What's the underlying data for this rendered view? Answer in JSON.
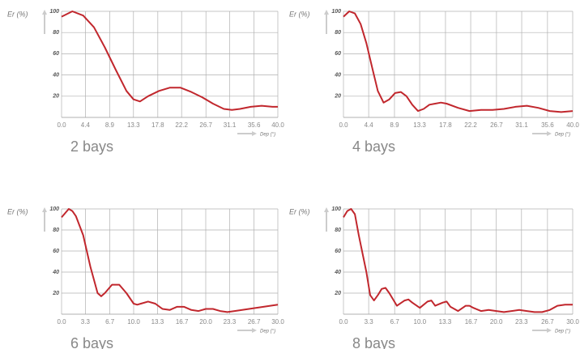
{
  "chart_data": [
    {
      "type": "line",
      "title": "2 bays",
      "y_label": "Er (%)",
      "x_label": "Dep (°)",
      "x": [
        0,
        2,
        4,
        6,
        8,
        10,
        12,
        13.3,
        14.5,
        16,
        18,
        20,
        22,
        24,
        26,
        28,
        30,
        31.5,
        33,
        35,
        37,
        39,
        40
      ],
      "series": [
        {
          "color": "#c1272d",
          "values": [
            95,
            100,
            96,
            85,
            66,
            45,
            25,
            17,
            15,
            20,
            25,
            28,
            28,
            24,
            19,
            13,
            8,
            7,
            8,
            10,
            11,
            10,
            10
          ]
        }
      ],
      "xlim": [
        0,
        40
      ],
      "xticks": [
        {
          "value": 0,
          "label": "0.0"
        },
        4.4,
        8.9,
        13.3,
        17.8,
        22.2,
        26.7,
        31.1,
        35.6,
        {
          "value": 40,
          "label": "40.0"
        }
      ],
      "ylim": [
        0,
        100
      ],
      "yticks": [
        20,
        40,
        60,
        80,
        100
      ],
      "grid": true
    },
    {
      "type": "line",
      "title": "4 bays",
      "y_label": "Er (%)",
      "x_label": "Dep (°)",
      "x": [
        0,
        1,
        2,
        3,
        4,
        5,
        6,
        7,
        8,
        9,
        10,
        11,
        12,
        13,
        14,
        15,
        16,
        17,
        18,
        20,
        22,
        24,
        26,
        28,
        30,
        32,
        34,
        36,
        38,
        40
      ],
      "series": [
        {
          "color": "#c1272d",
          "values": [
            95,
            100,
            98,
            88,
            70,
            47,
            25,
            14,
            17,
            23,
            24,
            20,
            12,
            6,
            8,
            12,
            13,
            14,
            13,
            9,
            6,
            7,
            7,
            8,
            10,
            11,
            9,
            6,
            5,
            6
          ]
        }
      ],
      "xlim": [
        0,
        40
      ],
      "xticks": [
        {
          "value": 0,
          "label": "0.0"
        },
        4.4,
        8.9,
        13.3,
        17.8,
        22.2,
        26.7,
        31.1,
        35.6,
        {
          "value": 40,
          "label": "40.0"
        }
      ],
      "ylim": [
        0,
        100
      ],
      "yticks": [
        20,
        40,
        60,
        80,
        100
      ],
      "grid": true
    },
    {
      "type": "line",
      "title": "6 bays",
      "y_label": "Er (%)",
      "x_label": "Dep (°)",
      "x": [
        0,
        1,
        1.5,
        2,
        3,
        4,
        5,
        5.5,
        6,
        7,
        8,
        9,
        10,
        10.5,
        11,
        12,
        13,
        14,
        15,
        16,
        17,
        18,
        19,
        20,
        21,
        22,
        23,
        24,
        26,
        28,
        30
      ],
      "series": [
        {
          "color": "#c1272d",
          "values": [
            92,
            100,
            98,
            93,
            75,
            45,
            20,
            17,
            20,
            28,
            28,
            20,
            10,
            9,
            10,
            12,
            10,
            5,
            4,
            7,
            7,
            4,
            3,
            5,
            5,
            3,
            2,
            3,
            5,
            7,
            9
          ]
        }
      ],
      "xlim": [
        0,
        30
      ],
      "xticks": [
        {
          "value": 0,
          "label": "0.0"
        },
        3.3,
        6.7,
        {
          "value": 10,
          "label": "10.0"
        },
        13.3,
        16.7,
        {
          "value": 20,
          "label": "20.0"
        },
        23.3,
        26.7,
        {
          "value": 30,
          "label": "30.0"
        }
      ],
      "ylim": [
        0,
        100
      ],
      "yticks": [
        20,
        40,
        60,
        80,
        100
      ],
      "grid": true
    },
    {
      "type": "line",
      "title": "8 bays",
      "y_label": "Er (%)",
      "x_label": "Dep (°)",
      "x": [
        0,
        0.5,
        1,
        1.5,
        2,
        3,
        3.5,
        4,
        4.5,
        5,
        5.5,
        6,
        7,
        8,
        8.5,
        9,
        10,
        11,
        11.5,
        12,
        13,
        13.5,
        14,
        15,
        16,
        16.5,
        17,
        18,
        19,
        20,
        21,
        22,
        23,
        24,
        25,
        26,
        27,
        28,
        29,
        30
      ],
      "series": [
        {
          "color": "#c1272d",
          "values": [
            92,
            98,
            100,
            95,
            75,
            40,
            18,
            13,
            18,
            24,
            25,
            20,
            8,
            13,
            14,
            11,
            6,
            12,
            13,
            8,
            11,
            12,
            7,
            3,
            8,
            8,
            6,
            3,
            4,
            3,
            2,
            3,
            4,
            3,
            2,
            2,
            4,
            8,
            9,
            9
          ]
        }
      ],
      "xlim": [
        0,
        30
      ],
      "xticks": [
        {
          "value": 0,
          "label": "0.0"
        },
        3.3,
        6.7,
        {
          "value": 10,
          "label": "10.0"
        },
        13.3,
        16.7,
        {
          "value": 20,
          "label": "20.0"
        },
        23.3,
        26.7,
        {
          "value": 30,
          "label": "30.0"
        }
      ],
      "ylim": [
        0,
        100
      ],
      "yticks": [
        20,
        40,
        60,
        80,
        100
      ],
      "grid": true
    }
  ]
}
